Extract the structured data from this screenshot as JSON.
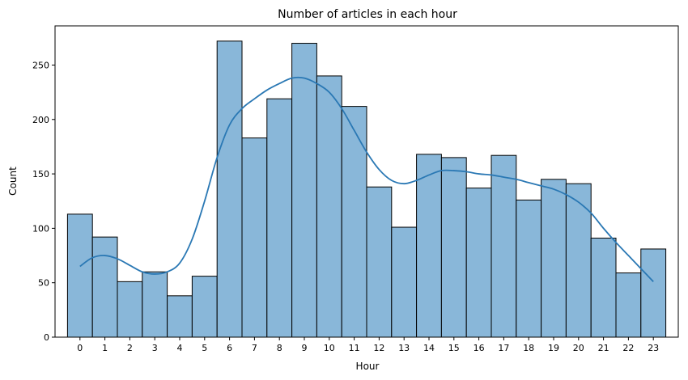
{
  "chart_data": {
    "type": "bar",
    "title": "Number of articles in each hour",
    "xlabel": "Hour",
    "ylabel": "Count",
    "categories": [
      "0",
      "1",
      "2",
      "3",
      "4",
      "5",
      "6",
      "7",
      "8",
      "9",
      "10",
      "11",
      "12",
      "13",
      "14",
      "15",
      "16",
      "17",
      "18",
      "19",
      "20",
      "21",
      "22",
      "23"
    ],
    "values": [
      113,
      92,
      51,
      60,
      38,
      56,
      272,
      183,
      219,
      270,
      240,
      212,
      138,
      101,
      168,
      165,
      137,
      167,
      126,
      145,
      141,
      91,
      59,
      81
    ],
    "yticks": [
      0,
      50,
      100,
      150,
      200,
      250
    ],
    "ylim": [
      0,
      286
    ],
    "grid": false,
    "bar_color": "#89b7d9",
    "edge_color": "#000000",
    "kde": {
      "color": "#2a78b4",
      "x": [
        0,
        0.5,
        1,
        1.5,
        2,
        2.5,
        3,
        3.5,
        4,
        4.5,
        5,
        5.5,
        6,
        6.5,
        7,
        7.5,
        8,
        8.5,
        9,
        9.5,
        10,
        10.5,
        11,
        11.5,
        12,
        12.5,
        13,
        13.5,
        14,
        14.5,
        15,
        15.5,
        16,
        16.5,
        17,
        17.5,
        18,
        18.5,
        19,
        19.5,
        20,
        20.5,
        21,
        21.5,
        22,
        22.5,
        23
      ],
      "y": [
        65,
        73,
        75,
        72,
        66,
        60,
        58,
        60,
        68,
        90,
        125,
        165,
        195,
        210,
        219,
        227,
        233,
        238,
        238,
        233,
        225,
        210,
        190,
        170,
        154,
        144,
        141,
        144,
        149,
        153,
        153,
        152,
        150,
        149,
        147,
        145,
        142,
        139,
        136,
        131,
        124,
        114,
        100,
        87,
        75,
        63,
        51
      ]
    }
  }
}
